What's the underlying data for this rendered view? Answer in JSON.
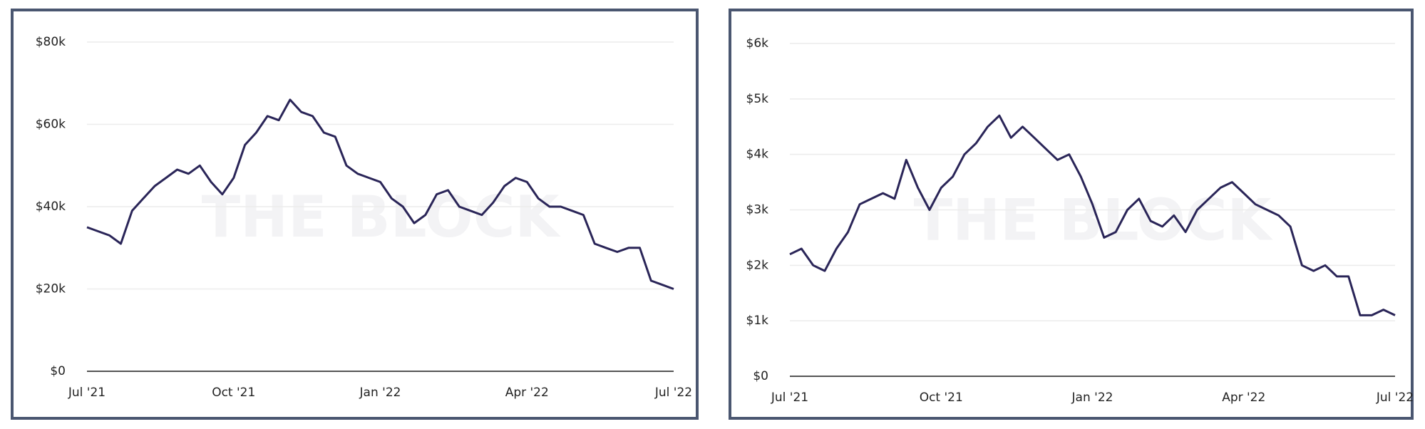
{
  "chart_data": [
    {
      "type": "line",
      "watermark": "THE BLOCK",
      "categories": [
        "Jul '21",
        null,
        null,
        null,
        null,
        null,
        null,
        null,
        null,
        null,
        null,
        null,
        null,
        "Oct '21",
        null,
        null,
        null,
        null,
        null,
        null,
        null,
        null,
        null,
        null,
        null,
        null,
        "Jan '22",
        null,
        null,
        null,
        null,
        null,
        null,
        null,
        null,
        null,
        null,
        null,
        null,
        "Apr '22",
        null,
        null,
        null,
        null,
        null,
        null,
        null,
        null,
        null,
        null,
        null,
        null,
        "Jul '22"
      ],
      "series": [
        {
          "color": "#2a2558",
          "values": [
            35000,
            34000,
            33000,
            31000,
            39000,
            42000,
            45000,
            47000,
            49000,
            48000,
            50000,
            46000,
            43000,
            47000,
            55000,
            58000,
            62000,
            61000,
            66000,
            63000,
            62000,
            58000,
            57000,
            50000,
            48000,
            47000,
            46000,
            42000,
            40000,
            36000,
            38000,
            43000,
            44000,
            40000,
            39000,
            38000,
            41000,
            45000,
            47000,
            46000,
            42000,
            40000,
            40000,
            39000,
            38000,
            31000,
            30000,
            29000,
            30000,
            30000,
            22000,
            21000,
            20000
          ]
        }
      ],
      "ylim": [
        0,
        80000
      ],
      "yticks": [
        {
          "value": 0,
          "label": "$0"
        },
        {
          "value": 20000,
          "label": "$20k"
        },
        {
          "value": 40000,
          "label": "$40k"
        },
        {
          "value": 60000,
          "label": "$60k"
        },
        {
          "value": 80000,
          "label": "$80k"
        }
      ],
      "grid": true
    },
    {
      "type": "line",
      "watermark": "THE BLOCK",
      "categories": [
        "Jul '21",
        null,
        null,
        null,
        null,
        null,
        null,
        null,
        null,
        null,
        null,
        null,
        null,
        "Oct '21",
        null,
        null,
        null,
        null,
        null,
        null,
        null,
        null,
        null,
        null,
        null,
        null,
        "Jan '22",
        null,
        null,
        null,
        null,
        null,
        null,
        null,
        null,
        null,
        null,
        null,
        null,
        "Apr '22",
        null,
        null,
        null,
        null,
        null,
        null,
        null,
        null,
        null,
        null,
        null,
        null,
        "Jul '22"
      ],
      "series": [
        {
          "color": "#2a2558",
          "values": [
            2200,
            2300,
            2000,
            1900,
            2300,
            2600,
            3100,
            3200,
            3300,
            3200,
            3900,
            3400,
            3000,
            3400,
            3600,
            4000,
            4200,
            4500,
            4700,
            4300,
            4500,
            4300,
            4100,
            3900,
            4000,
            3600,
            3100,
            2500,
            2600,
            3000,
            3200,
            2800,
            2700,
            2900,
            2600,
            3000,
            3200,
            3400,
            3500,
            3300,
            3100,
            3000,
            2900,
            2700,
            2000,
            1900,
            2000,
            1800,
            1800,
            1100,
            1100,
            1200,
            1100
          ]
        }
      ],
      "ylim": [
        0,
        6000
      ],
      "yticks": [
        {
          "value": 0,
          "label": "$0"
        },
        {
          "value": 1000,
          "label": "$1k"
        },
        {
          "value": 2000,
          "label": "$2k"
        },
        {
          "value": 3000,
          "label": "$3k"
        },
        {
          "value": 4000,
          "label": "$4k"
        },
        {
          "value": 5000,
          "label": "$5k"
        },
        {
          "value": 6000,
          "label": "$6k"
        }
      ],
      "grid": true
    }
  ]
}
